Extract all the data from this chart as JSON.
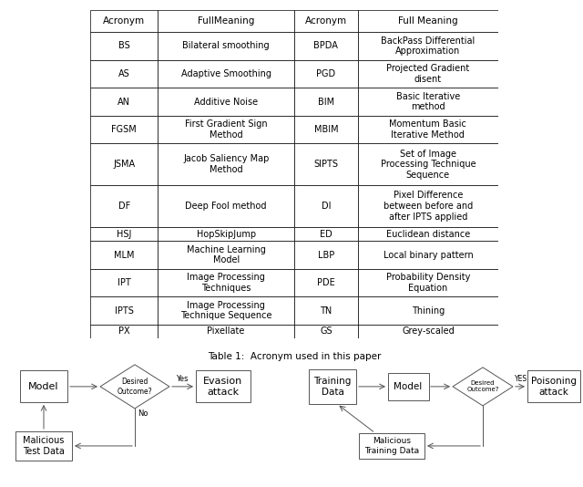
{
  "table_caption": "Table 1:  Acronym used in this paper",
  "headers": [
    "Acronym",
    "FullMeaning",
    "Acronym",
    "Full Meaning"
  ],
  "rows": [
    [
      "BS",
      "Bilateral smoothing",
      "BPDA",
      "BackPass Differential\nApproximation"
    ],
    [
      "AS",
      "Adaptive Smoothing",
      "PGD",
      "Projected Gradient\ndisent"
    ],
    [
      "AN",
      "Additive Noise",
      "BIM",
      "Basic Iterative\nmethod"
    ],
    [
      "FGSM",
      "First Gradient Sign\nMethod",
      "MBIM",
      "Momentum Basic\nIterative Method"
    ],
    [
      "JSMA",
      "Jacob Saliency Map\nMethod",
      "SIPTS",
      "Set of Image\nProcessing Technique\nSequence"
    ],
    [
      "DF",
      "Deep Fool method",
      "DI",
      "Pixel Difference\nbetween before and\nafter IPTS applied"
    ],
    [
      "HSJ",
      "HopSkipJump",
      "ED",
      "Euclidean distance"
    ],
    [
      "MLM",
      "Machine Learning\nModel",
      "LBP",
      "Local binary pattern"
    ],
    [
      "IPT",
      "Image Processing\nTechniques",
      "PDE",
      "Probability Density\nEquation"
    ],
    [
      "IPTS",
      "Image Processing\nTechnique Sequence",
      "TN",
      "Thining"
    ],
    [
      "PX",
      "Pixellate",
      "GS",
      "Grey-scaled"
    ]
  ],
  "background_color": "#ffffff",
  "line_color": "#000000",
  "text_color": "#000000",
  "table_font_size": 7.0,
  "header_font_size": 7.5,
  "caption_font_size": 7.5
}
